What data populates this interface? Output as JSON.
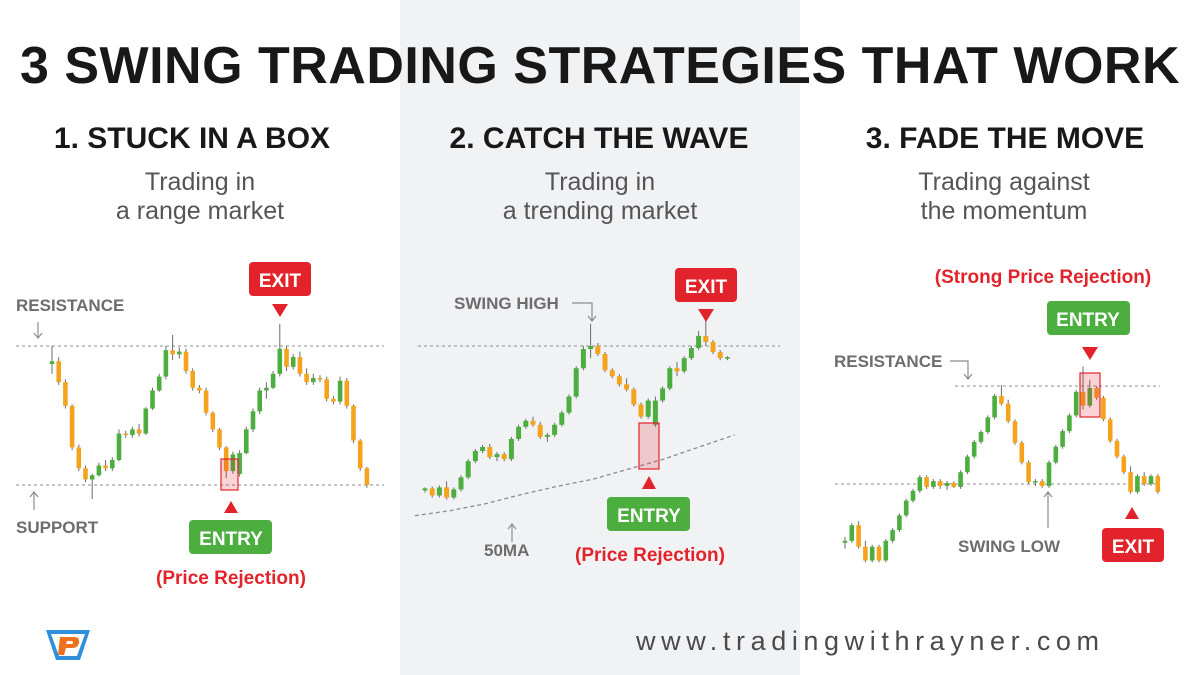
{
  "title": "3 SWING TRADING STRATEGIES THAT WORK",
  "panels": [
    {
      "heading": "1.  STUCK IN A BOX",
      "sub1": "Trading in",
      "sub2": "a range market"
    },
    {
      "heading": "2. CATCH THE WAVE",
      "sub1": "Trading in",
      "sub2": "a trending market"
    },
    {
      "heading": "3. FADE THE MOVE",
      "sub1": "Trading against",
      "sub2": "the momentum"
    }
  ],
  "annotations": {
    "resistance": "RESISTANCE",
    "support": "SUPPORT",
    "exit": "EXIT",
    "entry": "ENTRY",
    "price_rejection": "(Price Rejection)",
    "swing_high": "SWING HIGH",
    "ma": "50MA",
    "strong_rejection": "(Strong Price Rejection)",
    "swing_low": "SWING LOW"
  },
  "website": "www.tradingwithrayner.com",
  "colors": {
    "bull": "#4cae3f",
    "bear": "#f5a21c",
    "entry": "#4cae3f",
    "exit": "#e3232b",
    "panel_bg": "#f1f2f4"
  },
  "chart_data": [
    {
      "type": "candlestick",
      "title": "1.  STUCK IN A BOX",
      "levels": {
        "resistance": 100,
        "support": 0
      },
      "candles": [
        {
          "o": 87,
          "h": 100,
          "l": 80,
          "c": 89
        },
        {
          "o": 89,
          "h": 92,
          "l": 72,
          "c": 74
        },
        {
          "o": 74,
          "h": 76,
          "l": 55,
          "c": 57
        },
        {
          "o": 57,
          "h": 58,
          "l": 25,
          "c": 27
        },
        {
          "o": 27,
          "h": 29,
          "l": 10,
          "c": 12
        },
        {
          "o": 12,
          "h": 14,
          "l": 2,
          "c": 4
        },
        {
          "o": 4,
          "h": 8,
          "l": -10,
          "c": 7
        },
        {
          "o": 7,
          "h": 16,
          "l": 6,
          "c": 14
        },
        {
          "o": 14,
          "h": 18,
          "l": 10,
          "c": 12
        },
        {
          "o": 12,
          "h": 20,
          "l": 10,
          "c": 18
        },
        {
          "o": 18,
          "h": 40,
          "l": 17,
          "c": 37
        },
        {
          "o": 37,
          "h": 39,
          "l": 34,
          "c": 36
        },
        {
          "o": 36,
          "h": 42,
          "l": 34,
          "c": 40
        },
        {
          "o": 40,
          "h": 44,
          "l": 35,
          "c": 37
        },
        {
          "o": 37,
          "h": 56,
          "l": 36,
          "c": 55
        },
        {
          "o": 55,
          "h": 70,
          "l": 54,
          "c": 68
        },
        {
          "o": 68,
          "h": 80,
          "l": 67,
          "c": 78
        },
        {
          "o": 78,
          "h": 100,
          "l": 76,
          "c": 97
        },
        {
          "o": 97,
          "h": 108,
          "l": 90,
          "c": 94
        },
        {
          "o": 94,
          "h": 99,
          "l": 91,
          "c": 96
        },
        {
          "o": 96,
          "h": 98,
          "l": 80,
          "c": 82
        },
        {
          "o": 82,
          "h": 84,
          "l": 68,
          "c": 70
        },
        {
          "o": 70,
          "h": 72,
          "l": 66,
          "c": 68
        },
        {
          "o": 68,
          "h": 70,
          "l": 50,
          "c": 52
        },
        {
          "o": 52,
          "h": 53,
          "l": 38,
          "c": 40
        },
        {
          "o": 40,
          "h": 41,
          "l": 25,
          "c": 27
        },
        {
          "o": 27,
          "h": 28,
          "l": 5,
          "c": 10
        },
        {
          "o": 10,
          "h": 24,
          "l": 8,
          "c": 22
        },
        {
          "o": 8,
          "h": 25,
          "l": 6,
          "c": 23
        },
        {
          "o": 23,
          "h": 42,
          "l": 22,
          "c": 40
        },
        {
          "o": 40,
          "h": 55,
          "l": 38,
          "c": 53
        },
        {
          "o": 53,
          "h": 70,
          "l": 51,
          "c": 68
        },
        {
          "o": 68,
          "h": 74,
          "l": 62,
          "c": 70
        },
        {
          "o": 70,
          "h": 82,
          "l": 69,
          "c": 80
        },
        {
          "o": 80,
          "h": 116,
          "l": 78,
          "c": 98
        },
        {
          "o": 98,
          "h": 100,
          "l": 82,
          "c": 85
        },
        {
          "o": 85,
          "h": 94,
          "l": 83,
          "c": 92
        },
        {
          "o": 92,
          "h": 96,
          "l": 78,
          "c": 80
        },
        {
          "o": 80,
          "h": 84,
          "l": 72,
          "c": 74
        },
        {
          "o": 74,
          "h": 80,
          "l": 72,
          "c": 77
        },
        {
          "o": 77,
          "h": 79,
          "l": 74,
          "c": 76
        },
        {
          "o": 76,
          "h": 78,
          "l": 60,
          "c": 62
        },
        {
          "o": 62,
          "h": 64,
          "l": 58,
          "c": 60
        },
        {
          "o": 60,
          "h": 78,
          "l": 58,
          "c": 75
        },
        {
          "o": 75,
          "h": 77,
          "l": 55,
          "c": 57
        },
        {
          "o": 57,
          "h": 58,
          "l": 30,
          "c": 32
        },
        {
          "o": 32,
          "h": 33,
          "l": 10,
          "c": 12
        },
        {
          "o": 12,
          "h": 13,
          "l": -2,
          "c": 0
        }
      ],
      "entry_index": 28,
      "exit_index": 34
    },
    {
      "type": "candlestick",
      "title": "2. CATCH THE WAVE",
      "levels": {
        "swing_high": 100
      },
      "moving_average": {
        "label": "50MA",
        "values": [
          -68,
          -63,
          -56,
          -47,
          -39,
          -32,
          -22,
          -12,
          0,
          12
        ]
      },
      "candles": [
        {
          "o": -43,
          "h": -40,
          "l": -45,
          "c": -41
        },
        {
          "o": -41,
          "h": -39,
          "l": -50,
          "c": -48
        },
        {
          "o": -48,
          "h": -38,
          "l": -50,
          "c": -40
        },
        {
          "o": -40,
          "h": -34,
          "l": -52,
          "c": -50
        },
        {
          "o": -50,
          "h": -40,
          "l": -52,
          "c": -42
        },
        {
          "o": -42,
          "h": -28,
          "l": -44,
          "c": -30
        },
        {
          "o": -30,
          "h": -12,
          "l": -32,
          "c": -14
        },
        {
          "o": -14,
          "h": -2,
          "l": -16,
          "c": -4
        },
        {
          "o": -4,
          "h": 2,
          "l": -6,
          "c": 0
        },
        {
          "o": 0,
          "h": 3,
          "l": -12,
          "c": -10
        },
        {
          "o": -10,
          "h": -5,
          "l": -14,
          "c": -7
        },
        {
          "o": -7,
          "h": -5,
          "l": -14,
          "c": -12
        },
        {
          "o": -12,
          "h": 10,
          "l": -14,
          "c": 8
        },
        {
          "o": 8,
          "h": 22,
          "l": 6,
          "c": 20
        },
        {
          "o": 20,
          "h": 28,
          "l": 18,
          "c": 26
        },
        {
          "o": 26,
          "h": 30,
          "l": 20,
          "c": 22
        },
        {
          "o": 22,
          "h": 25,
          "l": 8,
          "c": 10
        },
        {
          "o": 10,
          "h": 14,
          "l": 5,
          "c": 12
        },
        {
          "o": 12,
          "h": 24,
          "l": 10,
          "c": 22
        },
        {
          "o": 22,
          "h": 36,
          "l": 20,
          "c": 34
        },
        {
          "o": 34,
          "h": 52,
          "l": 32,
          "c": 50
        },
        {
          "o": 50,
          "h": 80,
          "l": 48,
          "c": 78
        },
        {
          "o": 78,
          "h": 100,
          "l": 76,
          "c": 97
        },
        {
          "o": 97,
          "h": 122,
          "l": 88,
          "c": 100
        },
        {
          "o": 100,
          "h": 103,
          "l": 90,
          "c": 92
        },
        {
          "o": 92,
          "h": 94,
          "l": 74,
          "c": 76
        },
        {
          "o": 76,
          "h": 78,
          "l": 68,
          "c": 70
        },
        {
          "o": 70,
          "h": 72,
          "l": 60,
          "c": 62
        },
        {
          "o": 62,
          "h": 68,
          "l": 55,
          "c": 57
        },
        {
          "o": 57,
          "h": 59,
          "l": 40,
          "c": 42
        },
        {
          "o": 42,
          "h": 44,
          "l": 28,
          "c": 30
        },
        {
          "o": 30,
          "h": 48,
          "l": 28,
          "c": 46
        },
        {
          "o": 22,
          "h": 50,
          "l": 20,
          "c": 46
        },
        {
          "o": 46,
          "h": 60,
          "l": 44,
          "c": 58
        },
        {
          "o": 58,
          "h": 80,
          "l": 56,
          "c": 78
        },
        {
          "o": 78,
          "h": 84,
          "l": 70,
          "c": 75
        },
        {
          "o": 75,
          "h": 90,
          "l": 73,
          "c": 88
        },
        {
          "o": 88,
          "h": 100,
          "l": 86,
          "c": 98
        },
        {
          "o": 98,
          "h": 115,
          "l": 96,
          "c": 110
        },
        {
          "o": 110,
          "h": 125,
          "l": 100,
          "c": 104
        },
        {
          "o": 104,
          "h": 106,
          "l": 92,
          "c": 94
        },
        {
          "o": 94,
          "h": 96,
          "l": 86,
          "c": 88
        },
        {
          "o": 88,
          "h": 90,
          "l": 86,
          "c": 89
        }
      ],
      "entry_index": 32,
      "exit_index": 38
    },
    {
      "type": "candlestick",
      "title": "3. FADE THE MOVE",
      "levels": {
        "resistance": 100,
        "swing_low": 0
      },
      "candles": [
        {
          "o": -60,
          "h": -54,
          "l": -66,
          "c": -58
        },
        {
          "o": -58,
          "h": -40,
          "l": -60,
          "c": -42
        },
        {
          "o": -42,
          "h": -38,
          "l": -66,
          "c": -64
        },
        {
          "o": -64,
          "h": -58,
          "l": -80,
          "c": -78
        },
        {
          "o": -78,
          "h": -62,
          "l": -80,
          "c": -64
        },
        {
          "o": -64,
          "h": -62,
          "l": -80,
          "c": -78
        },
        {
          "o": -78,
          "h": -56,
          "l": -80,
          "c": -58
        },
        {
          "o": -58,
          "h": -45,
          "l": -60,
          "c": -47
        },
        {
          "o": -47,
          "h": -30,
          "l": -49,
          "c": -32
        },
        {
          "o": -32,
          "h": -15,
          "l": -34,
          "c": -17
        },
        {
          "o": -17,
          "h": -5,
          "l": -19,
          "c": -7
        },
        {
          "o": -7,
          "h": 9,
          "l": -9,
          "c": 7
        },
        {
          "o": 7,
          "h": 9,
          "l": -5,
          "c": -3
        },
        {
          "o": -3,
          "h": 5,
          "l": -5,
          "c": 3
        },
        {
          "o": 3,
          "h": 5,
          "l": -5,
          "c": -2
        },
        {
          "o": -2,
          "h": 3,
          "l": -6,
          "c": 1
        },
        {
          "o": 1,
          "h": 3,
          "l": -4,
          "c": -3
        },
        {
          "o": -3,
          "h": 14,
          "l": -5,
          "c": 12
        },
        {
          "o": 12,
          "h": 30,
          "l": 10,
          "c": 28
        },
        {
          "o": 28,
          "h": 45,
          "l": 26,
          "c": 43
        },
        {
          "o": 43,
          "h": 55,
          "l": 41,
          "c": 53
        },
        {
          "o": 53,
          "h": 70,
          "l": 51,
          "c": 68
        },
        {
          "o": 68,
          "h": 92,
          "l": 66,
          "c": 90
        },
        {
          "o": 90,
          "h": 101,
          "l": 80,
          "c": 82
        },
        {
          "o": 82,
          "h": 86,
          "l": 62,
          "c": 64
        },
        {
          "o": 64,
          "h": 66,
          "l": 40,
          "c": 42
        },
        {
          "o": 42,
          "h": 44,
          "l": 20,
          "c": 22
        },
        {
          "o": 22,
          "h": 24,
          "l": 0,
          "c": 2
        },
        {
          "o": 2,
          "h": 5,
          "l": -2,
          "c": 3
        },
        {
          "o": 3,
          "h": 5,
          "l": -4,
          "c": -2
        },
        {
          "o": -2,
          "h": 24,
          "l": -4,
          "c": 22
        },
        {
          "o": 22,
          "h": 40,
          "l": 20,
          "c": 38
        },
        {
          "o": 38,
          "h": 56,
          "l": 36,
          "c": 54
        },
        {
          "o": 54,
          "h": 72,
          "l": 52,
          "c": 70
        },
        {
          "o": 70,
          "h": 96,
          "l": 68,
          "c": 94
        },
        {
          "o": 94,
          "h": 120,
          "l": 76,
          "c": 80
        },
        {
          "o": 80,
          "h": 106,
          "l": 78,
          "c": 98
        },
        {
          "o": 98,
          "h": 100,
          "l": 86,
          "c": 88
        },
        {
          "o": 88,
          "h": 90,
          "l": 64,
          "c": 66
        },
        {
          "o": 66,
          "h": 68,
          "l": 42,
          "c": 44
        },
        {
          "o": 44,
          "h": 46,
          "l": 26,
          "c": 28
        },
        {
          "o": 28,
          "h": 30,
          "l": 10,
          "c": 12
        },
        {
          "o": 12,
          "h": 18,
          "l": -10,
          "c": -8
        },
        {
          "o": -8,
          "h": 10,
          "l": -10,
          "c": 8
        },
        {
          "o": 8,
          "h": 12,
          "l": -2,
          "c": 0
        },
        {
          "o": 0,
          "h": 10,
          "l": -2,
          "c": 8
        },
        {
          "o": 8,
          "h": 10,
          "l": -10,
          "c": -8
        }
      ],
      "entry_index": 35,
      "exit_index": 42
    }
  ]
}
